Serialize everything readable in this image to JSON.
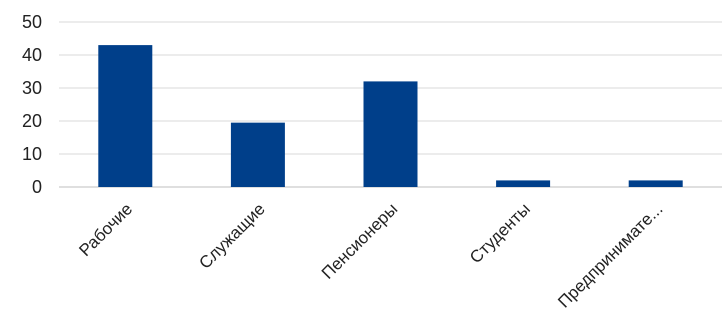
{
  "chart_data": {
    "type": "bar",
    "categories": [
      "Рабочие",
      "Служащие",
      "Пенсионеры",
      "Студенты",
      "Предпринимате..."
    ],
    "values": [
      43,
      19.5,
      32,
      2,
      2
    ],
    "ylim": [
      0,
      50
    ],
    "yticks": [
      0,
      10,
      20,
      30,
      40,
      50
    ],
    "grid": true,
    "legend": "none",
    "colors": {
      "bar": "#003f8a",
      "grid": "#d9d9d9",
      "axis": "#bfbfbf"
    }
  }
}
